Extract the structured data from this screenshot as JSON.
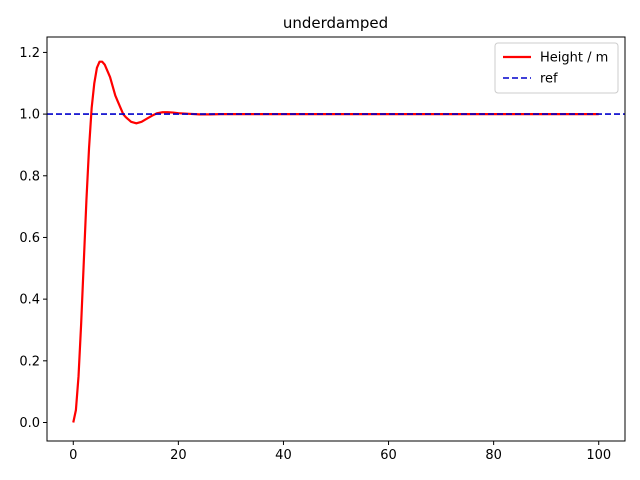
{
  "chart_data": {
    "type": "line",
    "title": "underdamped",
    "xlabel": "",
    "ylabel": "",
    "xlim": [
      -5,
      105
    ],
    "ylim": [
      -0.06,
      1.25
    ],
    "xticks": [
      0,
      20,
      40,
      60,
      80,
      100
    ],
    "xtick_labels": [
      "0",
      "20",
      "40",
      "60",
      "80",
      "100"
    ],
    "yticks": [
      0.0,
      0.2,
      0.4,
      0.6,
      0.8,
      1.0,
      1.2
    ],
    "ytick_labels": [
      "0.0",
      "0.2",
      "0.4",
      "0.6",
      "0.8",
      "1.0",
      "1.2"
    ],
    "grid": false,
    "legend_position": "top-right",
    "series": [
      {
        "name": "Height / m",
        "color": "#ff0000",
        "style": "solid",
        "x": [
          0,
          0.5,
          1,
          1.5,
          2,
          2.5,
          3,
          3.5,
          4,
          4.5,
          5,
          5.5,
          6,
          6.5,
          7,
          7.5,
          8,
          8.5,
          9,
          9.5,
          10,
          11,
          12,
          13,
          14,
          15,
          16,
          17,
          18,
          19,
          20,
          22,
          24,
          26,
          28,
          30,
          35,
          40,
          50,
          60,
          70,
          80,
          90,
          100
        ],
        "y": [
          0.0,
          0.04,
          0.15,
          0.32,
          0.52,
          0.72,
          0.89,
          1.02,
          1.1,
          1.15,
          1.17,
          1.17,
          1.16,
          1.14,
          1.12,
          1.09,
          1.06,
          1.04,
          1.02,
          1.0,
          0.99,
          0.975,
          0.97,
          0.975,
          0.985,
          0.995,
          1.003,
          1.006,
          1.006,
          1.005,
          1.003,
          1.001,
          0.999,
          0.999,
          1.0,
          1.0,
          1.0,
          1.0,
          1.0,
          1.0,
          1.0,
          1.0,
          1.0,
          1.0
        ]
      },
      {
        "name": "ref",
        "color": "#0000cc",
        "style": "dashed",
        "x": [
          -5,
          105
        ],
        "y": [
          1.0,
          1.0
        ]
      }
    ]
  }
}
